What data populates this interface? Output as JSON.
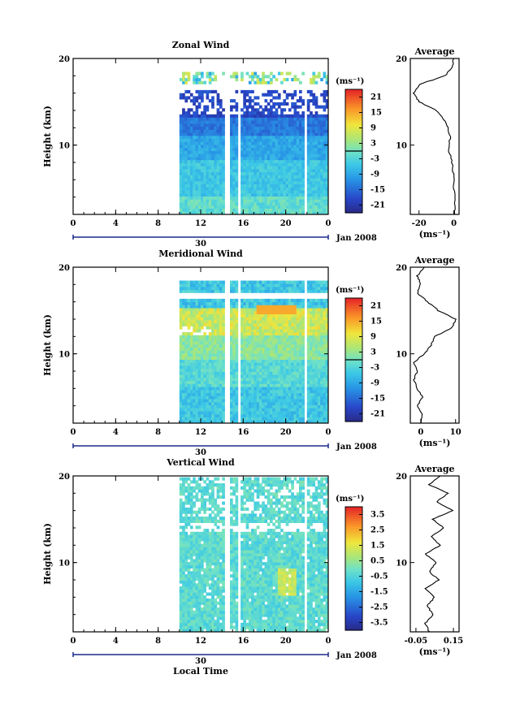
{
  "chart_data": [
    {
      "type": "heatmap",
      "title": "Zonal Wind",
      "ylabel": "Height (km)",
      "ylim": [
        2,
        20
      ],
      "y_ticks": [
        10,
        20
      ],
      "x_tick_labels": [
        "0",
        "4",
        "8",
        "12",
        "16",
        "20",
        "0"
      ],
      "xlim": [
        0,
        24
      ],
      "data_x_start": 10,
      "date_label": "30",
      "date_suffix": "Jan 2008",
      "colorbar": {
        "unit": "(ms⁻¹)",
        "ticks": [
          21,
          15,
          9,
          3,
          -3,
          -9,
          -15,
          -21
        ],
        "zero_line": true
      },
      "profile": {
        "title": "Average",
        "xlabel": "(ms⁻¹)",
        "x_ticks": [
          -20,
          0
        ],
        "xlim": [
          -25,
          3
        ],
        "y_ticks": [
          10,
          20
        ],
        "points": [
          [
            0.5,
            2
          ],
          [
            0.3,
            4
          ],
          [
            0,
            6
          ],
          [
            -1,
            8
          ],
          [
            -3,
            9.5
          ],
          [
            -2,
            11
          ],
          [
            -4,
            12.5
          ],
          [
            -10,
            14
          ],
          [
            -20,
            15
          ],
          [
            -23,
            16
          ],
          [
            -20,
            17
          ],
          [
            -5,
            18
          ],
          [
            -1,
            19
          ],
          [
            0,
            20
          ]
        ]
      }
    },
    {
      "type": "heatmap",
      "title": "Meridional Wind",
      "ylabel": "Height (km)",
      "ylim": [
        2,
        20
      ],
      "y_ticks": [
        10,
        20
      ],
      "x_tick_labels": [
        "0",
        "4",
        "8",
        "12",
        "16",
        "20",
        "0"
      ],
      "xlim": [
        0,
        24
      ],
      "data_x_start": 10,
      "date_label": "30",
      "date_suffix": "Jan 2008",
      "colorbar": {
        "unit": "(ms⁻¹)",
        "ticks": [
          21,
          15,
          9,
          3,
          -3,
          -9,
          -15,
          -21
        ],
        "zero_line": true
      },
      "profile": {
        "title": "Average",
        "xlabel": "(ms⁻¹)",
        "x_ticks": [
          0,
          10
        ],
        "xlim": [
          -3,
          11
        ],
        "y_ticks": [
          10,
          20
        ],
        "points": [
          [
            0,
            2
          ],
          [
            0.5,
            3
          ],
          [
            -1,
            4
          ],
          [
            0.5,
            5
          ],
          [
            -1,
            6
          ],
          [
            -2,
            7
          ],
          [
            -1,
            8
          ],
          [
            -2,
            9
          ],
          [
            1,
            10
          ],
          [
            3,
            11
          ],
          [
            4,
            12
          ],
          [
            9,
            13
          ],
          [
            10,
            14
          ],
          [
            5,
            15
          ],
          [
            2,
            16
          ],
          [
            -1,
            17
          ],
          [
            0,
            18
          ],
          [
            -1,
            19
          ],
          [
            1,
            20
          ]
        ]
      }
    },
    {
      "type": "heatmap",
      "title": "Vertical Wind",
      "ylabel": "Height (km)",
      "ylim": [
        2,
        20
      ],
      "y_ticks": [
        10,
        20
      ],
      "x_tick_labels": [
        "0",
        "4",
        "8",
        "12",
        "16",
        "20",
        "0"
      ],
      "xlim": [
        0,
        24
      ],
      "data_x_start": 10,
      "date_label": "30",
      "date_suffix": "Jan 2008",
      "xlabel": "Local Time",
      "colorbar": {
        "unit": "(ms⁻¹)",
        "ticks": [
          3.5,
          2.5,
          1.5,
          0.5,
          -0.5,
          -1.5,
          -2.5,
          -3.5
        ],
        "zero_line": false
      },
      "profile": {
        "title": "Average",
        "xlabel": "(ms⁻¹)",
        "x_ticks": [
          -0.05,
          0.15
        ],
        "x_tick_labels": [
          "-0.05",
          "0.15"
        ],
        "xlim": [
          -0.08,
          0.18
        ],
        "y_ticks": [
          10,
          20
        ],
        "points": [
          [
            0.02,
            2
          ],
          [
            0,
            3
          ],
          [
            0.04,
            4
          ],
          [
            0.01,
            5
          ],
          [
            0.05,
            6
          ],
          [
            0,
            7
          ],
          [
            0.07,
            8
          ],
          [
            0.02,
            9
          ],
          [
            0.06,
            10
          ],
          [
            0,
            11
          ],
          [
            0.08,
            12
          ],
          [
            0.03,
            13
          ],
          [
            0.1,
            14
          ],
          [
            0.04,
            15
          ],
          [
            0.15,
            16
          ],
          [
            0.06,
            17
          ],
          [
            0.12,
            18
          ],
          [
            0.02,
            19
          ],
          [
            0.08,
            20
          ]
        ]
      }
    }
  ]
}
